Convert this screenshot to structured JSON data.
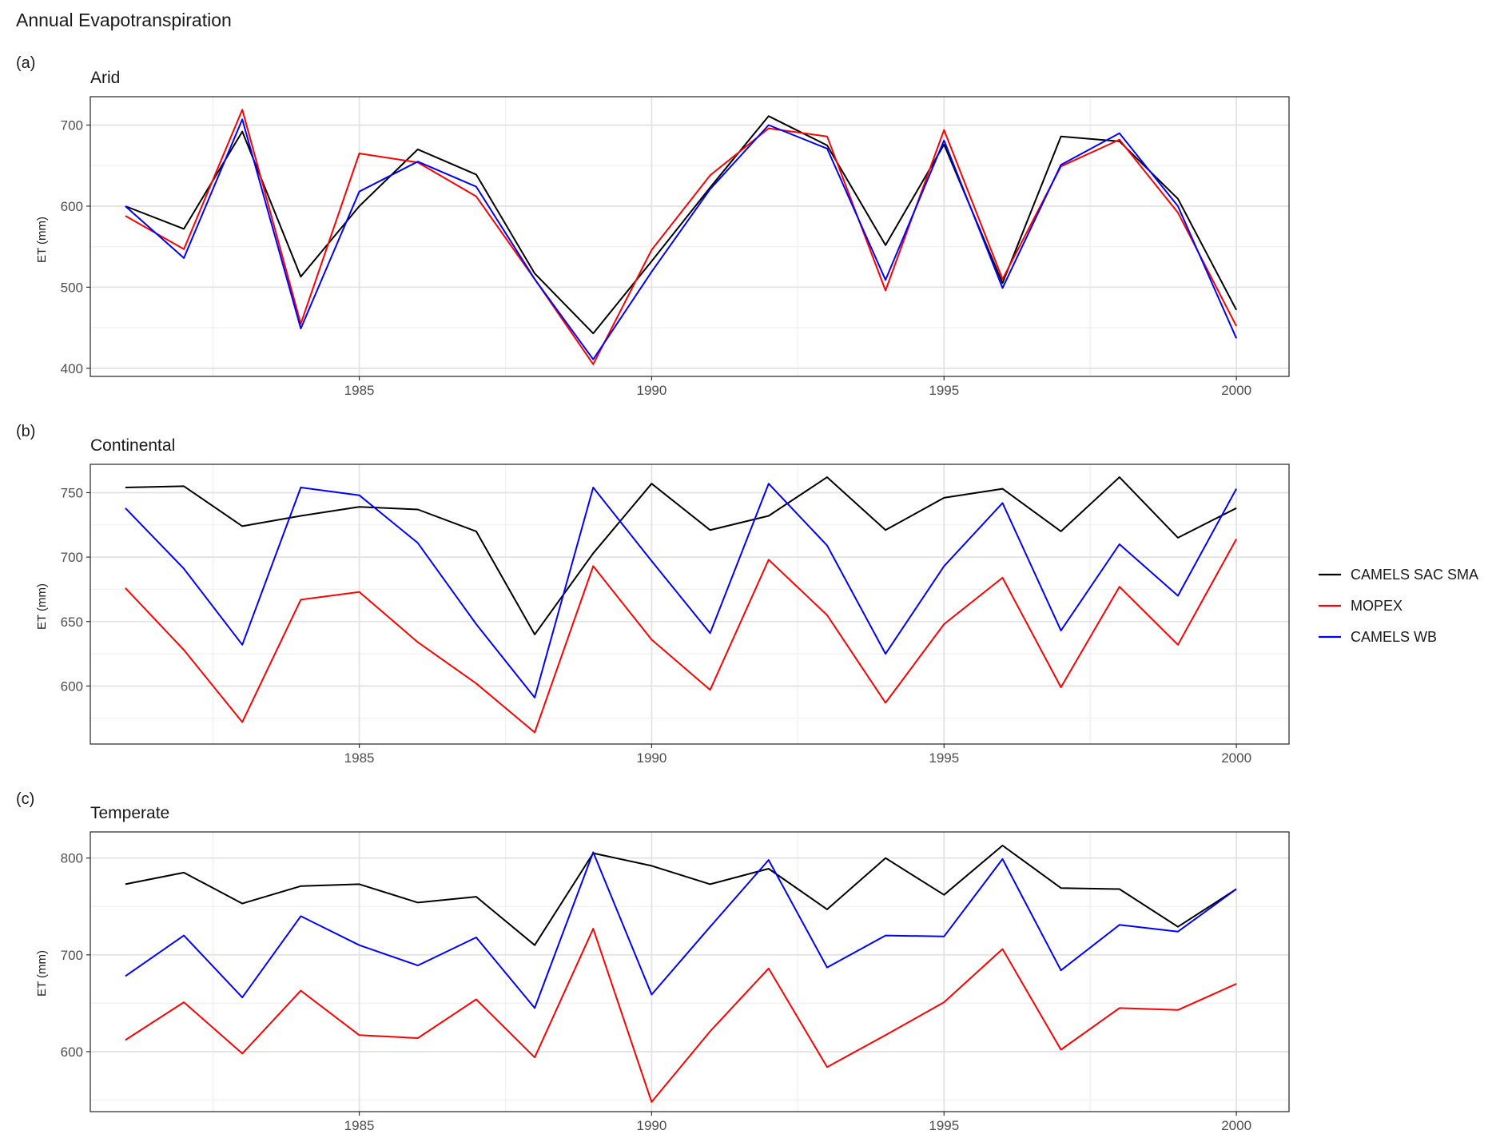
{
  "title": "Annual Evapotranspiration",
  "legend": {
    "placement": "right",
    "entries": [
      {
        "label": "CAMELS SAC SMA",
        "color": "#000000"
      },
      {
        "label": "MOPEX",
        "color": "#ff0000"
      },
      {
        "label": "CAMELS WB",
        "color": "#0000ff"
      }
    ]
  },
  "chart_data": [
    {
      "type": "line",
      "tag": "(a)",
      "title": "Arid",
      "ylabel": "ET (mm)",
      "xlabel": "",
      "grid": true,
      "xlim": [
        1980.4,
        2000.9
      ],
      "ylim": [
        390,
        735
      ],
      "xticks": [
        1985,
        1990,
        1995,
        2000
      ],
      "yticks": [
        400,
        500,
        600,
        700
      ],
      "x": [
        1981,
        1982,
        1983,
        1984,
        1985,
        1986,
        1987,
        1988,
        1989,
        1990,
        1991,
        1992,
        1993,
        1994,
        1995,
        1996,
        1997,
        1998,
        1999,
        2000
      ],
      "series": [
        {
          "name": "CAMELS SAC SMA",
          "color": "#000000",
          "values": [
            600,
            572,
            692,
            513,
            600,
            670,
            639,
            517,
            443,
            532,
            623,
            711,
            675,
            552,
            676,
            505,
            686,
            680,
            609,
            472
          ]
        },
        {
          "name": "MOPEX",
          "color": "#ff0000",
          "values": [
            588,
            547,
            719,
            455,
            665,
            654,
            612,
            510,
            405,
            546,
            638,
            696,
            686,
            496,
            694,
            510,
            649,
            682,
            592,
            452
          ]
        },
        {
          "name": "CAMELS WB",
          "color": "#0000ff",
          "values": [
            600,
            536,
            707,
            449,
            618,
            655,
            624,
            510,
            411,
            519,
            621,
            700,
            671,
            509,
            681,
            499,
            651,
            690,
            600,
            437
          ]
        }
      ]
    },
    {
      "type": "line",
      "tag": "(b)",
      "title": "Continental",
      "ylabel": "ET (mm)",
      "xlabel": "",
      "grid": true,
      "xlim": [
        1980.4,
        2000.9
      ],
      "ylim": [
        555,
        772
      ],
      "xticks": [
        1985,
        1990,
        1995,
        2000
      ],
      "yticks": [
        600,
        650,
        700,
        750
      ],
      "x": [
        1981,
        1982,
        1983,
        1984,
        1985,
        1986,
        1987,
        1988,
        1989,
        1990,
        1991,
        1992,
        1993,
        1994,
        1995,
        1996,
        1997,
        1998,
        1999,
        2000
      ],
      "series": [
        {
          "name": "CAMELS SAC SMA",
          "color": "#000000",
          "values": [
            754,
            755,
            724,
            732,
            739,
            737,
            720,
            640,
            703,
            757,
            721,
            732,
            762,
            721,
            746,
            753,
            720,
            762,
            715,
            738
          ]
        },
        {
          "name": "MOPEX",
          "color": "#ff0000",
          "values": [
            676,
            628,
            572,
            667,
            673,
            634,
            602,
            564,
            693,
            636,
            597,
            698,
            655,
            587,
            648,
            684,
            599,
            677,
            632,
            714
          ]
        },
        {
          "name": "CAMELS WB",
          "color": "#0000ff",
          "values": [
            738,
            691,
            632,
            754,
            748,
            711,
            648,
            591,
            754,
            697,
            641,
            757,
            709,
            625,
            693,
            742,
            643,
            710,
            670,
            753
          ]
        }
      ]
    },
    {
      "type": "line",
      "tag": "(c)",
      "title": "Temperate",
      "ylabel": "ET (mm)",
      "xlabel": "",
      "grid": true,
      "xlim": [
        1980.4,
        2000.9
      ],
      "ylim": [
        538,
        827
      ],
      "xticks": [
        1985,
        1990,
        1995,
        2000
      ],
      "yticks": [
        600,
        700,
        800
      ],
      "x": [
        1981,
        1982,
        1983,
        1984,
        1985,
        1986,
        1987,
        1988,
        1989,
        1990,
        1991,
        1992,
        1993,
        1994,
        1995,
        1996,
        1997,
        1998,
        1999,
        2000
      ],
      "series": [
        {
          "name": "CAMELS SAC SMA",
          "color": "#000000",
          "values": [
            773,
            785,
            753,
            771,
            773,
            754,
            760,
            710,
            805,
            792,
            773,
            789,
            747,
            800,
            762,
            813,
            769,
            768,
            729,
            768
          ]
        },
        {
          "name": "MOPEX",
          "color": "#ff0000",
          "values": [
            612,
            651,
            598,
            663,
            617,
            614,
            654,
            594,
            727,
            548,
            621,
            686,
            584,
            617,
            651,
            706,
            602,
            645,
            643,
            670
          ]
        },
        {
          "name": "CAMELS WB",
          "color": "#0000ff",
          "values": [
            678,
            720,
            656,
            740,
            710,
            689,
            718,
            645,
            806,
            659,
            729,
            798,
            687,
            720,
            719,
            799,
            684,
            731,
            724,
            768
          ]
        }
      ]
    }
  ]
}
